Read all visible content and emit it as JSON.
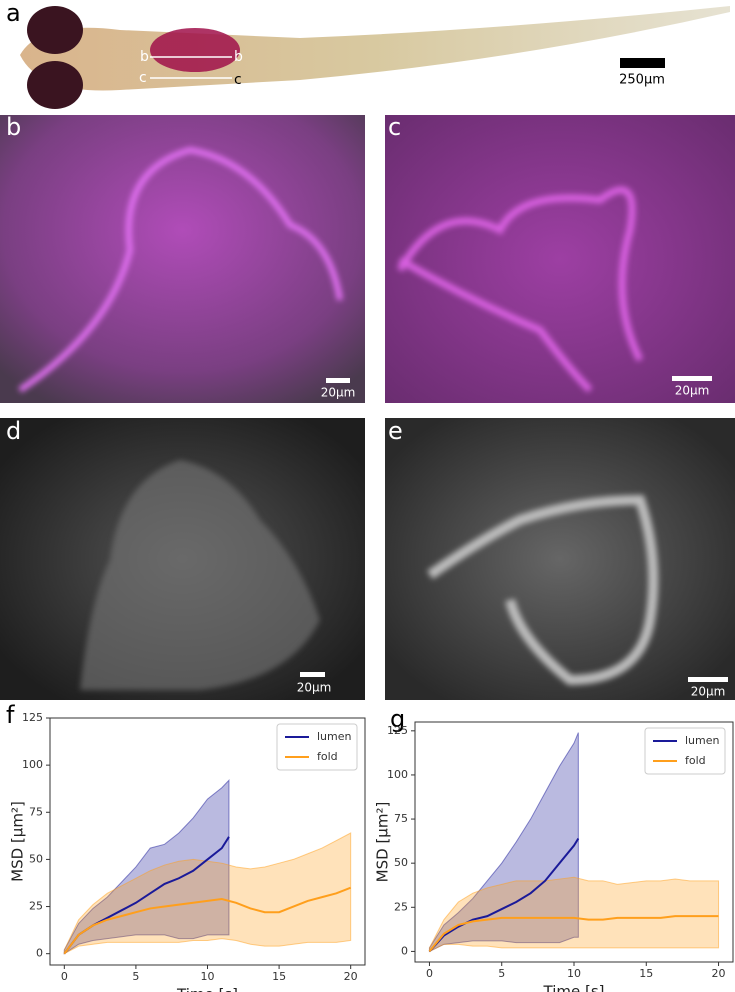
{
  "panels": {
    "a": {
      "label": "a",
      "markers": [
        "b",
        "b",
        "c",
        "c"
      ],
      "scale_bar": "250µm"
    },
    "b": {
      "label": "b",
      "scale_bar": "20µm"
    },
    "c": {
      "label": "c",
      "scale_bar": "20µm"
    },
    "d": {
      "label": "d",
      "scale_bar": "20µm"
    },
    "e": {
      "label": "e",
      "scale_bar": "20µm"
    }
  },
  "chart_data": [
    {
      "type": "line",
      "panel_label": "f",
      "x_label": "Time [s]",
      "y_label": "MSD [µm²]",
      "xlim": [
        -1,
        21
      ],
      "ylim": [
        -6,
        125
      ],
      "xticks": [
        0,
        5,
        10,
        15,
        20
      ],
      "yticks": [
        0,
        25,
        50,
        75,
        100,
        125
      ],
      "legend": "upper right",
      "series": [
        {
          "name": "lumen",
          "color": "#1a1a99",
          "x": [
            0,
            1,
            2,
            3,
            4,
            5,
            6,
            7,
            8,
            9,
            10,
            11,
            11.5
          ],
          "values": [
            0,
            10,
            15,
            19,
            23,
            27,
            32,
            37,
            40,
            44,
            50,
            56,
            62
          ],
          "upper": [
            2,
            16,
            24,
            30,
            38,
            46,
            56,
            58,
            64,
            72,
            82,
            88,
            92
          ],
          "lower": [
            0,
            5,
            7,
            8,
            9,
            10,
            10,
            10,
            8,
            8,
            10,
            10,
            10
          ]
        },
        {
          "name": "fold",
          "color": "#ff9f1c",
          "x": [
            0,
            1,
            2,
            3,
            4,
            5,
            6,
            7,
            8,
            9,
            10,
            11,
            12,
            13,
            14,
            15,
            16,
            17,
            18,
            19,
            20
          ],
          "values": [
            0,
            10,
            15,
            18,
            20,
            22,
            24,
            25,
            26,
            27,
            28,
            29,
            27,
            24,
            22,
            22,
            25,
            28,
            30,
            32,
            35
          ],
          "upper": [
            2,
            18,
            26,
            32,
            36,
            40,
            44,
            47,
            49,
            50,
            49,
            48,
            46,
            45,
            46,
            48,
            50,
            53,
            56,
            60,
            64
          ],
          "lower": [
            0,
            4,
            5,
            6,
            6,
            6,
            6,
            6,
            6,
            7,
            7,
            8,
            7,
            5,
            4,
            4,
            5,
            6,
            6,
            6,
            7
          ]
        }
      ]
    },
    {
      "type": "line",
      "panel_label": "g",
      "x_label": "Time [s]",
      "y_label": "MSD [µm²]",
      "xlim": [
        -1,
        21
      ],
      "ylim": [
        -6,
        130
      ],
      "xticks": [
        0,
        5,
        10,
        15,
        20
      ],
      "yticks": [
        0,
        25,
        50,
        75,
        100,
        125
      ],
      "legend": "upper right",
      "series": [
        {
          "name": "lumen",
          "color": "#1a1a99",
          "x": [
            0,
            1,
            2,
            3,
            4,
            5,
            6,
            7,
            8,
            9,
            10,
            10.3
          ],
          "values": [
            0,
            9,
            14,
            18,
            20,
            24,
            28,
            33,
            40,
            50,
            60,
            64
          ],
          "upper": [
            2,
            15,
            22,
            30,
            40,
            50,
            62,
            75,
            90,
            105,
            118,
            124
          ],
          "lower": [
            0,
            4,
            5,
            6,
            6,
            6,
            5,
            5,
            5,
            5,
            8,
            8
          ]
        },
        {
          "name": "fold",
          "color": "#ff9f1c",
          "x": [
            0,
            1,
            2,
            3,
            4,
            5,
            6,
            7,
            8,
            9,
            10,
            11,
            12,
            13,
            14,
            15,
            16,
            17,
            18,
            19,
            20
          ],
          "values": [
            0,
            10,
            15,
            17,
            18,
            19,
            19,
            19,
            19,
            19,
            19,
            18,
            18,
            19,
            19,
            19,
            19,
            20,
            20,
            20,
            20
          ],
          "upper": [
            2,
            18,
            28,
            33,
            36,
            38,
            40,
            40,
            40,
            41,
            42,
            40,
            40,
            38,
            39,
            40,
            40,
            41,
            40,
            40,
            40
          ],
          "lower": [
            0,
            4,
            4,
            3,
            3,
            2,
            2,
            2,
            2,
            2,
            2,
            2,
            2,
            2,
            2,
            2,
            2,
            2,
            2,
            2,
            2
          ]
        }
      ]
    }
  ]
}
